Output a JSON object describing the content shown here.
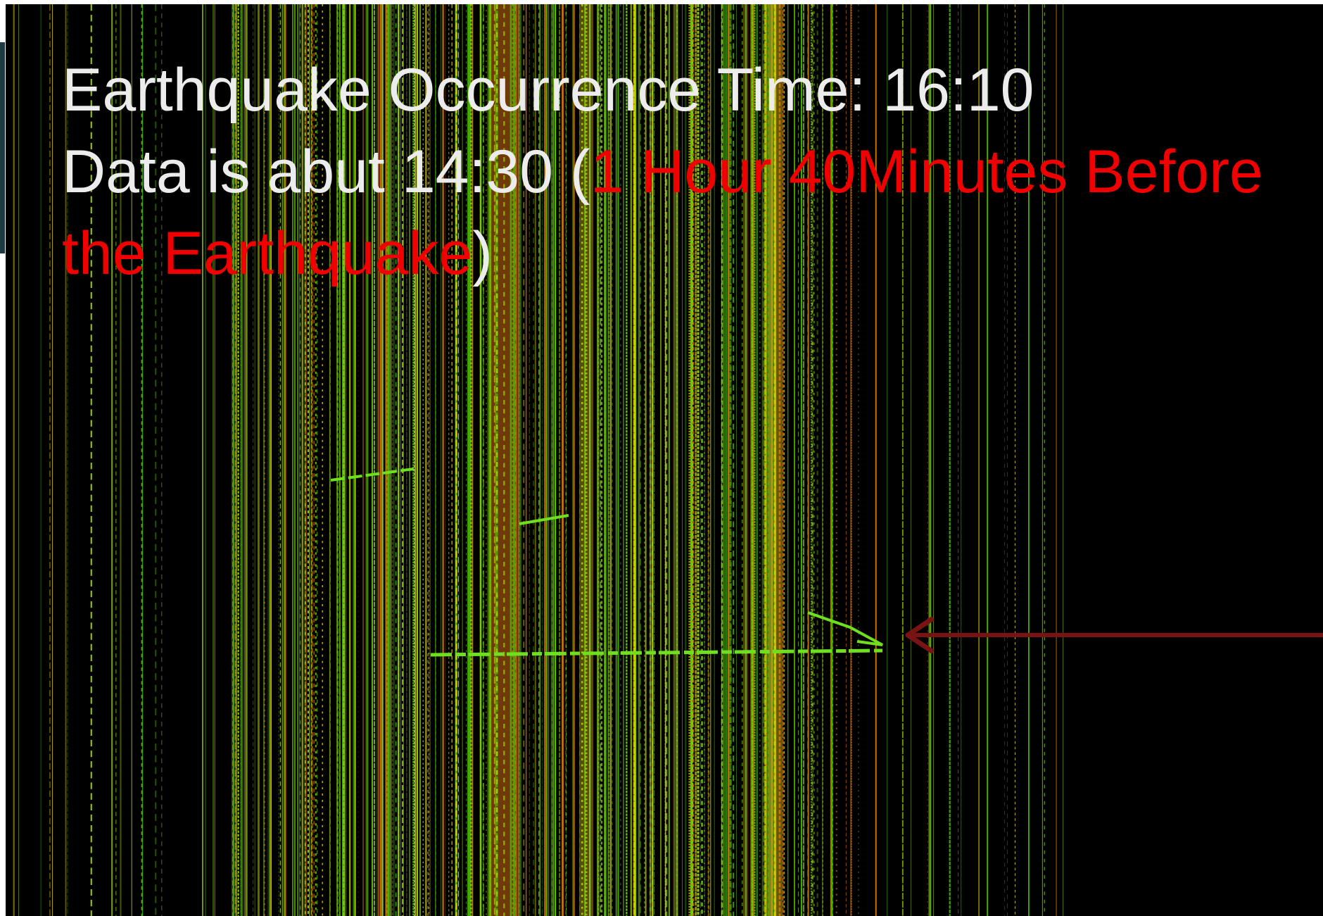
{
  "title": "Earthquake Occurrence Time: 16:10",
  "subtitle": {
    "prefix": "Data is abut 14:30 (",
    "highlight": "1 Hour 40Minutes Before the Earthquake",
    "suffix": ")"
  }
}
